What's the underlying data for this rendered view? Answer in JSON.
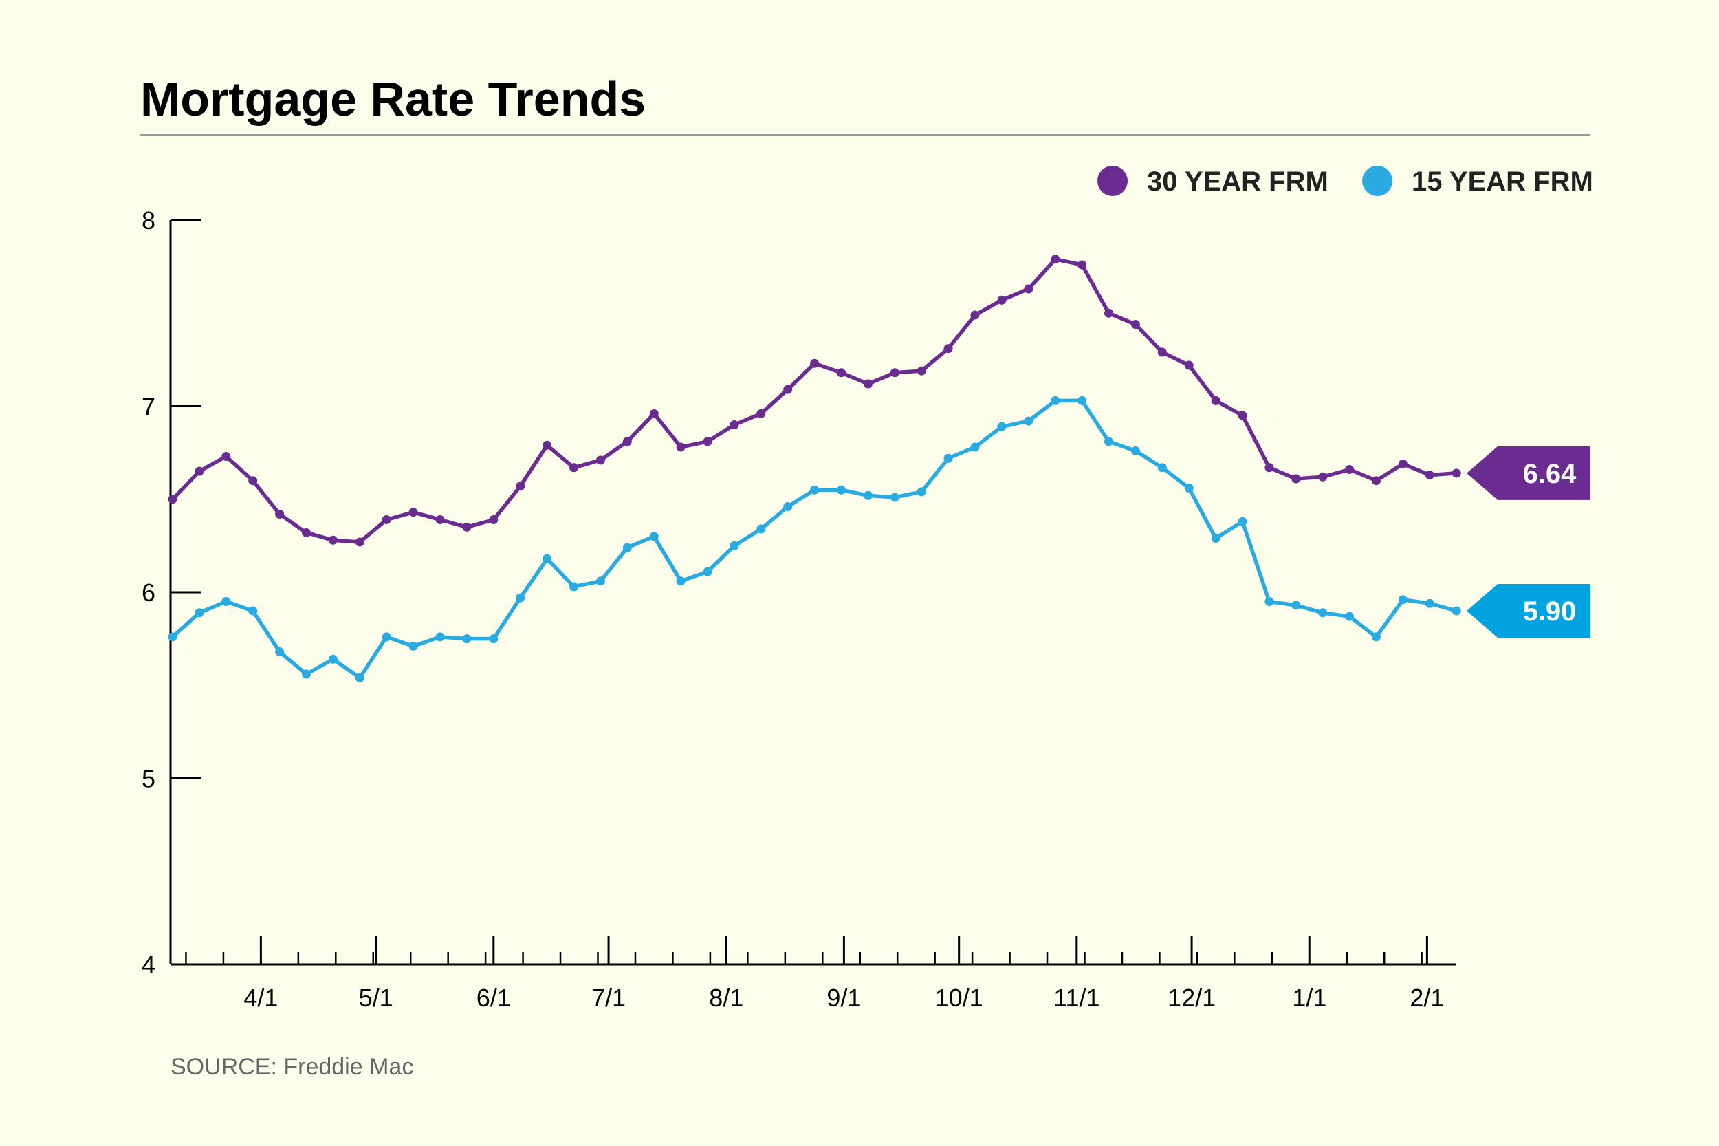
{
  "chart_data": {
    "type": "line",
    "title": "Mortgage Rate Trends",
    "source": "SOURCE: Freddie Mac",
    "xlabel": "",
    "ylabel": "",
    "ylim": [
      4,
      8
    ],
    "yticks": [
      4,
      5,
      6,
      7,
      8
    ],
    "grid": false,
    "legend_position": "top-right",
    "x_tick_labels": [
      "4/1",
      "5/1",
      "6/1",
      "7/1",
      "8/1",
      "9/1",
      "10/1",
      "11/1",
      "12/1",
      "1/1",
      "2/1"
    ],
    "x_tick_label_week_index": [
      3.3,
      7.6,
      12.0,
      16.3,
      20.7,
      25.1,
      29.4,
      33.8,
      38.1,
      42.5,
      46.9
    ],
    "series": [
      {
        "name": "30 YEAR FRM",
        "color": "#6a2c91",
        "callout_label": "6.64",
        "values": [
          6.5,
          6.65,
          6.73,
          6.6,
          6.42,
          6.32,
          6.28,
          6.27,
          6.39,
          6.43,
          6.39,
          6.35,
          6.39,
          6.57,
          6.79,
          6.67,
          6.71,
          6.81,
          6.96,
          6.78,
          6.81,
          6.9,
          6.96,
          7.09,
          7.23,
          7.18,
          7.12,
          7.18,
          7.19,
          7.31,
          7.49,
          7.57,
          7.63,
          7.79,
          7.76,
          7.5,
          7.44,
          7.29,
          7.22,
          7.03,
          6.95,
          6.67,
          6.61,
          6.62,
          6.66,
          6.6,
          6.69,
          6.63,
          6.64
        ]
      },
      {
        "name": "15 YEAR FRM",
        "color": "#29abe2",
        "callout_label": "5.90",
        "values": [
          5.76,
          5.89,
          5.95,
          5.9,
          5.68,
          5.56,
          5.64,
          5.54,
          5.76,
          5.71,
          5.76,
          5.75,
          5.75,
          5.97,
          6.18,
          6.03,
          6.06,
          6.24,
          6.3,
          6.06,
          6.11,
          6.25,
          6.34,
          6.46,
          6.55,
          6.55,
          6.52,
          6.51,
          6.54,
          6.72,
          6.78,
          6.89,
          6.92,
          7.03,
          7.03,
          6.81,
          6.76,
          6.67,
          6.56,
          6.29,
          6.38,
          5.95,
          5.93,
          5.89,
          5.87,
          5.76,
          5.96,
          5.94,
          5.9
        ]
      }
    ]
  }
}
